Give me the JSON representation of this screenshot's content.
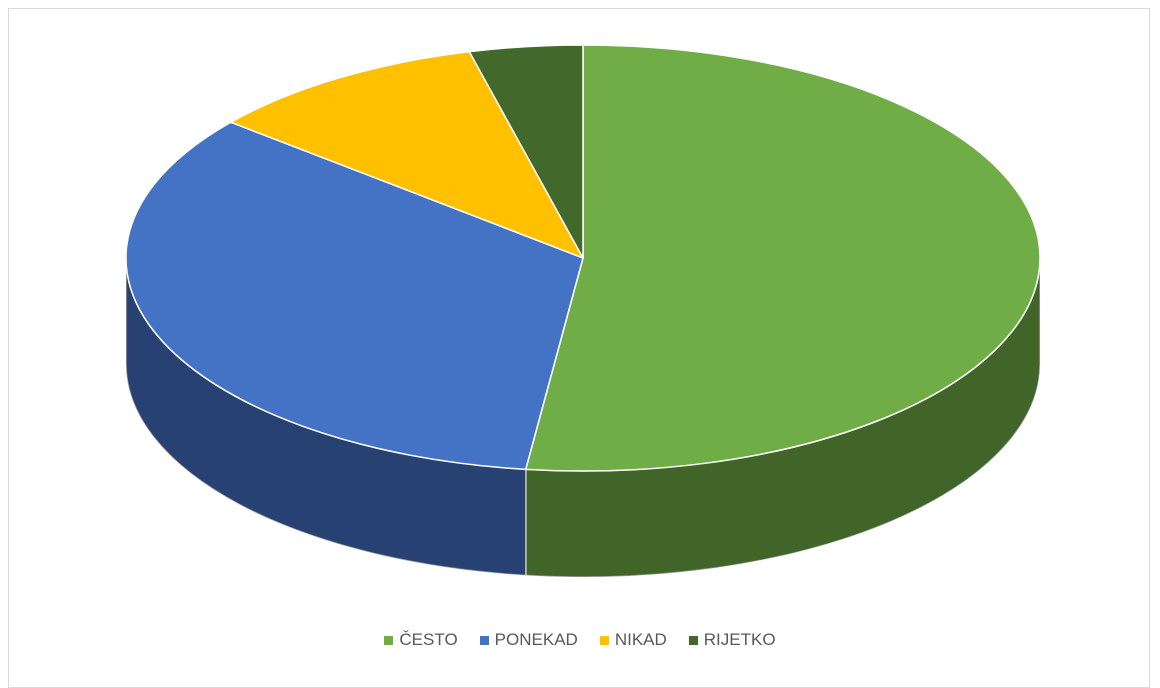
{
  "chart_data": {
    "type": "pie3d",
    "categories": [
      "ČESTO",
      "PONEKAD",
      "NIKAD",
      "RIJETKO"
    ],
    "values": [
      52,
      34,
      10,
      4
    ],
    "colors": [
      "#70ad47",
      "#4472c4",
      "#ffc000",
      "#43682b"
    ],
    "legend": "bottom"
  }
}
